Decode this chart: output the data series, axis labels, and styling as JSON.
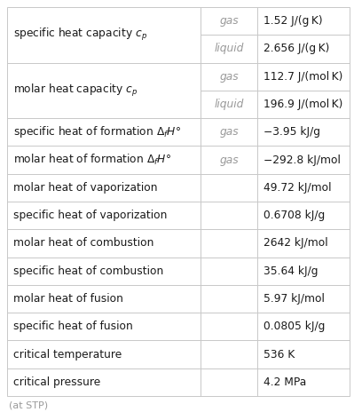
{
  "figsize": [
    3.99,
    4.73
  ],
  "dpi": 100,
  "bg_color": "#ffffff",
  "rows": [
    {
      "property": "specific heat capacity $c_p$",
      "sub_rows": [
        {
          "phase": "gas",
          "value": "1.52 J/(g K)"
        },
        {
          "phase": "liquid",
          "value": "2.656 J/(g K)"
        }
      ]
    },
    {
      "property": "molar heat capacity $c_p$",
      "sub_rows": [
        {
          "phase": "gas",
          "value": "112.7 J/(mol K)"
        },
        {
          "phase": "liquid",
          "value": "196.9 J/(mol K)"
        }
      ]
    },
    {
      "property": "specific heat of formation $\\Delta_f H°$",
      "sub_rows": [
        {
          "phase": "gas",
          "value": "−3.95 kJ/g"
        }
      ]
    },
    {
      "property": "molar heat of formation $\\Delta_f H°$",
      "sub_rows": [
        {
          "phase": "gas",
          "value": "−292.8 kJ/mol"
        }
      ]
    },
    {
      "property": "molar heat of vaporization",
      "sub_rows": [
        {
          "phase": "",
          "value": "49.72 kJ/mol"
        }
      ]
    },
    {
      "property": "specific heat of vaporization",
      "sub_rows": [
        {
          "phase": "",
          "value": "0.6708 kJ/g"
        }
      ]
    },
    {
      "property": "molar heat of combustion",
      "sub_rows": [
        {
          "phase": "",
          "value": "2642 kJ/mol"
        }
      ]
    },
    {
      "property": "specific heat of combustion",
      "sub_rows": [
        {
          "phase": "",
          "value": "35.64 kJ/g"
        }
      ]
    },
    {
      "property": "molar heat of fusion",
      "sub_rows": [
        {
          "phase": "",
          "value": "5.97 kJ/mol"
        }
      ]
    },
    {
      "property": "specific heat of fusion",
      "sub_rows": [
        {
          "phase": "",
          "value": "0.0805 kJ/g"
        }
      ]
    },
    {
      "property": "critical temperature",
      "sub_rows": [
        {
          "phase": "",
          "value": "536 K"
        }
      ]
    },
    {
      "property": "critical pressure",
      "sub_rows": [
        {
          "phase": "",
          "value": "4.2 MPa"
        }
      ]
    }
  ],
  "footer": "(at STP)",
  "line_color": "#c8c8c8",
  "property_color": "#1a1a1a",
  "phase_color": "#999999",
  "value_color": "#1a1a1a",
  "property_fontsize": 8.8,
  "phase_fontsize": 8.8,
  "value_fontsize": 8.8,
  "footer_fontsize": 8.0
}
